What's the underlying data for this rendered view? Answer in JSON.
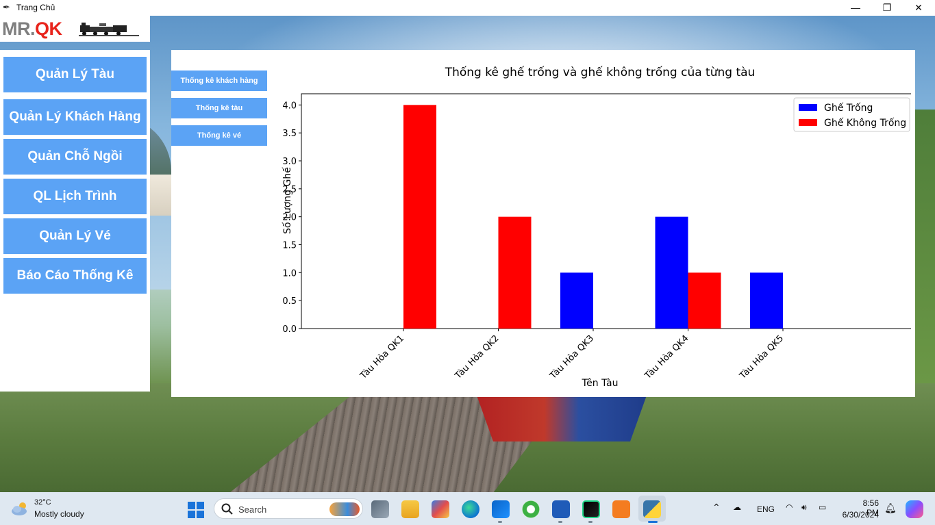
{
  "window": {
    "title": "Trang Chủ",
    "min_glyph": "—",
    "max_glyph": "❐",
    "close_glyph": "✕"
  },
  "logo": {
    "mr": "MR.",
    "qk": "QK"
  },
  "sidebar": {
    "items": [
      {
        "label": "Quản Lý Tàu"
      },
      {
        "label": "Quản Lý Khách Hàng"
      },
      {
        "label": "Quản Chỗ Ngồi"
      },
      {
        "label": "QL Lịch Trình"
      },
      {
        "label": "Quản Lý Vé"
      },
      {
        "label": "Báo Cáo Thống Kê"
      }
    ]
  },
  "report_tabs": [
    {
      "label": "Thống kê khách hàng"
    },
    {
      "label": "Thống kê tàu"
    },
    {
      "label": "Thống kê vé"
    }
  ],
  "chart_data": {
    "type": "bar",
    "title": "Thống kê ghế trống và ghế không trống của từng tàu",
    "xlabel": "Tên Tàu",
    "ylabel": "Số Lượng Ghế",
    "categories": [
      "Tàu Hỏa QK1",
      "Tàu Hỏa QK2",
      "Tàu Hỏa QK3",
      "Tàu Hỏa QK4",
      "Tàu Hỏa QK5"
    ],
    "series": [
      {
        "name": "Ghế Trống",
        "values": [
          0,
          0,
          1,
          2,
          1
        ],
        "color": "#0000ff"
      },
      {
        "name": "Ghế Không Trống",
        "values": [
          4,
          2,
          0,
          1,
          0
        ],
        "color": "#ff0000"
      }
    ],
    "ylim": [
      0,
      4.2
    ],
    "yticks": [
      "0.0",
      "0.5",
      "1.0",
      "1.5",
      "2.0",
      "2.5",
      "3.0",
      "3.5",
      "4.0"
    ],
    "legend": "top-right",
    "grid": false
  },
  "taskbar": {
    "weather_temp": "32°C",
    "weather_desc": "Mostly cloudy",
    "search_placeholder": "Search",
    "lang": "ENG",
    "time": "8:56 PM",
    "date": "6/30/2024"
  }
}
